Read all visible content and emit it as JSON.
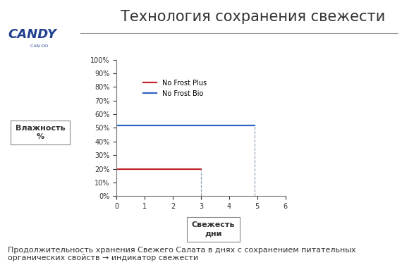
{
  "chart_data": {
    "type": "line",
    "title": "Технология сохранения свежести",
    "logo": "CANDY",
    "logo_tagline": "CAN DO",
    "y_label": "Влажность\n%",
    "x_label": "Свежесть\nдни",
    "caption": "Продолжительность хранения Свежего Салата в днях с сохранением питательных органических свойств → индикатор свежести",
    "series": [
      {
        "name": "No Frost Plus",
        "color": "#c0262c",
        "x": [
          0,
          3
        ],
        "values": [
          20,
          20
        ]
      },
      {
        "name": "No Frost Bio",
        "color": "#2f63c4",
        "x": [
          0,
          4.9
        ],
        "values": [
          52,
          52
        ]
      }
    ],
    "xlim": [
      0,
      6
    ],
    "xticks": [
      0,
      1,
      2,
      3,
      4,
      5,
      6
    ],
    "ylim": [
      0,
      100
    ],
    "yticks": [
      {
        "value": 0,
        "label": "0%"
      },
      {
        "value": 10,
        "label": "10%"
      },
      {
        "value": 20,
        "label": "20%"
      },
      {
        "value": 30,
        "label": "30%"
      },
      {
        "value": 40,
        "label": "40%"
      },
      {
        "value": 50,
        "label": "50%"
      },
      {
        "value": 60,
        "label": "60%"
      },
      {
        "value": 70,
        "label": "70%"
      },
      {
        "value": 80,
        "label": "80%"
      },
      {
        "value": 90,
        "label": "90%"
      },
      {
        "value": 100,
        "label": "100%"
      }
    ],
    "legend": "upper left",
    "grid": false
  }
}
